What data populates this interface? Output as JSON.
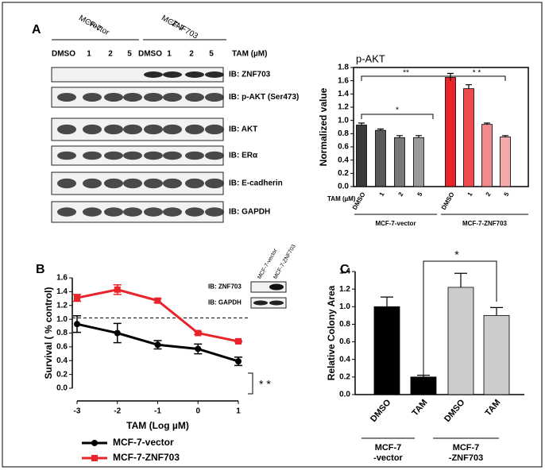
{
  "panel_labels": [
    "A",
    "B",
    "C"
  ],
  "blot": {
    "column_groups": [
      [
        "MCF-7",
        "-vector"
      ],
      [
        "MCF-7",
        "-ZNF703"
      ]
    ],
    "treatment_header": "TAM (µM)",
    "lanes": [
      "DMSO",
      "1",
      "2",
      "5",
      "DMSO",
      "1",
      "2",
      "5"
    ],
    "rows": [
      "IB: ZNF703",
      "IB: p-AKT (Ser473)",
      "IB: AKT",
      "IB: ERα",
      "IB: E-cadherin",
      "IB: GAPDH"
    ]
  },
  "chart_data": [
    {
      "type": "bar",
      "title": "p-AKT",
      "y_label": "Normalized value",
      "x_prefix": "TAM (µM)",
      "categories": [
        "DMSO",
        "1",
        "2",
        "5",
        "DMSO",
        "1",
        "2",
        "5"
      ],
      "values": [
        0.93,
        0.85,
        0.74,
        0.74,
        1.65,
        1.48,
        0.94,
        0.75
      ],
      "errors": [
        0.03,
        0.02,
        0.03,
        0.03,
        0.06,
        0.06,
        0.02,
        0.02
      ],
      "colors": [
        "#3a3a3a",
        "#5a5a5a",
        "#787878",
        "#9a9a9a",
        "#e8242a",
        "#ef4a4e",
        "#f08a8c",
        "#f4a9aa"
      ],
      "groups": [
        [
          "MCF-7-vector"
        ],
        [
          "MCF-7-ZNF703"
        ]
      ],
      "ylim": [
        0,
        1.8
      ],
      "yticks": [
        {
          "value": 0,
          "label": "0.0"
        },
        0.2,
        0.4,
        0.6,
        0.8,
        {
          "value": 1,
          "label": "1.0"
        },
        1.2,
        1.4,
        1.6,
        1.8
      ],
      "annotations": [
        "**",
        "*",
        "* *"
      ]
    },
    {
      "type": "line",
      "x": [
        -3,
        -2,
        -1,
        0,
        1
      ],
      "series": [
        {
          "name": "MCF-7-vector",
          "color": "#000000",
          "marker": "circle",
          "values": [
            0.93,
            0.8,
            0.63,
            0.57,
            0.39
          ],
          "errors": [
            0.12,
            0.14,
            0.06,
            0.07,
            0.06
          ]
        },
        {
          "name": "MCF-7-ZNF703",
          "color": "#e8242a",
          "marker": "square",
          "values": [
            1.31,
            1.43,
            1.27,
            0.8,
            0.68
          ],
          "errors": [
            0.05,
            0.07,
            0.03,
            0.02,
            0.01
          ]
        }
      ],
      "xlim": [
        -3,
        1
      ],
      "xticks": [
        -3,
        -2,
        -1,
        0,
        1
      ],
      "ylim": [
        0,
        1.6
      ],
      "yticks": [
        {
          "value": 0,
          "label": "0.0"
        },
        0.2,
        0.4,
        0.6,
        0.8,
        {
          "value": 1,
          "label": "1.0"
        },
        1.2,
        1.4,
        1.6
      ],
      "y_label": "Survival ( % control)",
      "x_label": "TAM (Log µM)",
      "reference_line": 1.02,
      "annotations": [
        "* *"
      ],
      "inset": {
        "columns": [
          "MCF-7-vector",
          "MCF-7-ZNF703"
        ],
        "rows": [
          "IB: ZNF703",
          "IB: GAPDH"
        ]
      }
    },
    {
      "type": "bar",
      "y_label": "Relative Colony Area",
      "categories": [
        "DMSO",
        "TAM",
        "DMSO",
        "TAM"
      ],
      "values": [
        1.0,
        0.2,
        1.22,
        0.9
      ],
      "errors": [
        0.11,
        0.02,
        0.16,
        0.09
      ],
      "colors": [
        "#000000",
        "#000000",
        "#cccccc",
        "#cccccc"
      ],
      "groups": [
        [
          "MCF-7",
          "-vector"
        ],
        [
          "MCF-7",
          "-ZNF703"
        ]
      ],
      "ylim": [
        0,
        1.4
      ],
      "yticks": [
        {
          "value": 0,
          "label": "0.0"
        },
        0.2,
        0.4,
        0.6,
        0.8,
        {
          "value": 1,
          "label": "1.0"
        },
        1.2,
        1.4
      ],
      "annotations": [
        "*"
      ]
    }
  ]
}
